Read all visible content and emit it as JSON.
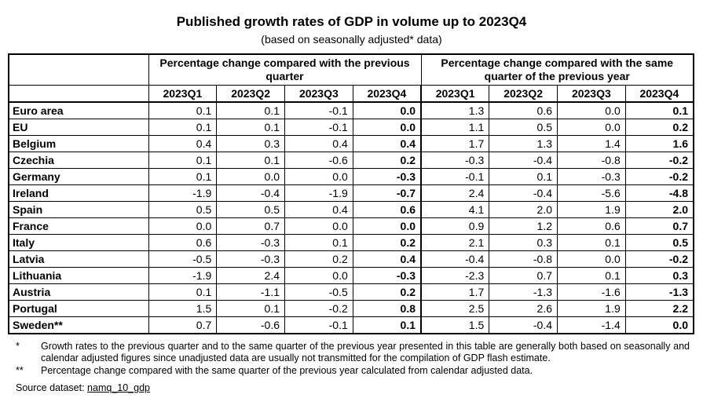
{
  "title": "Published growth rates of GDP in volume up to 2023Q4",
  "subtitle": "(based on seasonally adjusted* data)",
  "groups": {
    "qoq": "Percentage change compared with the previous quarter",
    "yoy": "Percentage change compared with the same quarter of the previous year"
  },
  "quarters": [
    "2023Q1",
    "2023Q2",
    "2023Q3",
    "2023Q4"
  ],
  "rows": [
    {
      "country": "Euro area",
      "qoq": [
        "0.1",
        "0.1",
        "-0.1",
        "0.0"
      ],
      "yoy": [
        "1.3",
        "0.6",
        "0.0",
        "0.1"
      ]
    },
    {
      "country": "EU",
      "qoq": [
        "0.1",
        "0.1",
        "-0.1",
        "0.0"
      ],
      "yoy": [
        "1.1",
        "0.5",
        "0.0",
        "0.2"
      ]
    },
    {
      "country": "Belgium",
      "qoq": [
        "0.4",
        "0.3",
        "0.4",
        "0.4"
      ],
      "yoy": [
        "1.7",
        "1.3",
        "1.4",
        "1.6"
      ]
    },
    {
      "country": "Czechia",
      "qoq": [
        "0.1",
        "0.1",
        "-0.6",
        "0.2"
      ],
      "yoy": [
        "-0.3",
        "-0.4",
        "-0.8",
        "-0.2"
      ]
    },
    {
      "country": "Germany",
      "qoq": [
        "0.1",
        "0.0",
        "0.0",
        "-0.3"
      ],
      "yoy": [
        "-0.1",
        "0.1",
        "-0.3",
        "-0.2"
      ]
    },
    {
      "country": "Ireland",
      "qoq": [
        "-1.9",
        "-0.4",
        "-1.9",
        "-0.7"
      ],
      "yoy": [
        "2.4",
        "-0.4",
        "-5.6",
        "-4.8"
      ]
    },
    {
      "country": "Spain",
      "qoq": [
        "0.5",
        "0.5",
        "0.4",
        "0.6"
      ],
      "yoy": [
        "4.1",
        "2.0",
        "1.9",
        "2.0"
      ]
    },
    {
      "country": "France",
      "qoq": [
        "0.0",
        "0.7",
        "0.0",
        "0.0"
      ],
      "yoy": [
        "0.9",
        "1.2",
        "0.6",
        "0.7"
      ]
    },
    {
      "country": "Italy",
      "qoq": [
        "0.6",
        "-0.3",
        "0.1",
        "0.2"
      ],
      "yoy": [
        "2.1",
        "0.3",
        "0.1",
        "0.5"
      ]
    },
    {
      "country": "Latvia",
      "qoq": [
        "-0.5",
        "-0.3",
        "0.2",
        "0.4"
      ],
      "yoy": [
        "-0.4",
        "-0.8",
        "0.0",
        "-0.2"
      ]
    },
    {
      "country": "Lithuania",
      "qoq": [
        "-1.9",
        "2.4",
        "0.0",
        "-0.3"
      ],
      "yoy": [
        "-2.3",
        "0.7",
        "0.1",
        "0.3"
      ]
    },
    {
      "country": "Austria",
      "qoq": [
        "0.1",
        "-1.1",
        "-0.5",
        "0.2"
      ],
      "yoy": [
        "1.7",
        "-1.3",
        "-1.6",
        "-1.3"
      ]
    },
    {
      "country": "Portugal",
      "qoq": [
        "1.5",
        "0.1",
        "-0.2",
        "0.8"
      ],
      "yoy": [
        "2.5",
        "2.6",
        "1.9",
        "2.2"
      ]
    },
    {
      "country": "Sweden**",
      "qoq": [
        "0.7",
        "-0.6",
        "-0.1",
        "0.1"
      ],
      "yoy": [
        "1.5",
        "-0.4",
        "-1.4",
        "0.0"
      ]
    }
  ],
  "notes": [
    {
      "mark": "*",
      "text": "Growth rates to the previous quarter and to the same quarter of the previous year presented in this table are generally both based on seasonally and calendar adjusted figures since unadjusted data are usually not transmitted for the compilation of GDP flash estimate."
    },
    {
      "mark": "**",
      "text": "Percentage change compared with the same quarter of the previous year calculated from calendar adjusted data."
    }
  ],
  "source": {
    "label": "Source dataset:",
    "link": "namq_10_gdp"
  }
}
